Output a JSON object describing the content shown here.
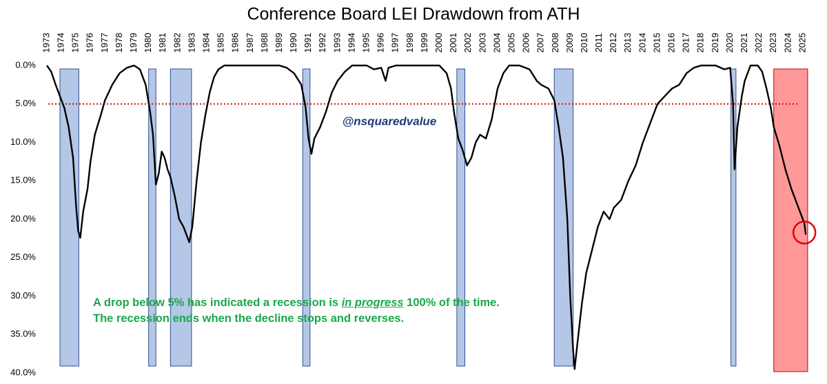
{
  "chart_data": {
    "type": "line",
    "title": "Conference Board LEI Drawdown from ATH",
    "watermark": "@nsquaredvalue",
    "annotation": {
      "line1_before": "A drop below 5% has indicated a recession is",
      "line1_emph": "in progress",
      "line1_after": "100% of the time.",
      "line2": "The recession ends when the decline stops and reverses."
    },
    "color": "#000000",
    "y_inverted": true,
    "threshold": 5,
    "threshold_color": "#e00000",
    "recession_color": "#b4c7e7",
    "recessions": [
      {
        "start": 1973.9,
        "end": 1975.2
      },
      {
        "start": 1980.0,
        "end": 1980.5
      },
      {
        "start": 1981.5,
        "end": 1982.95
      },
      {
        "start": 1990.6,
        "end": 1991.1
      },
      {
        "start": 2001.2,
        "end": 2001.75
      },
      {
        "start": 2007.9,
        "end": 2009.2
      },
      {
        "start": 2020.05,
        "end": 2020.4
      }
    ],
    "current_color": "#ff9999",
    "current": {
      "start": 2023.0,
      "end": 2025.33
    },
    "x": [
      1973.0,
      1973.3,
      1973.6,
      1973.9,
      1974.2,
      1974.5,
      1974.8,
      1975.0,
      1975.15,
      1975.3,
      1975.5,
      1975.8,
      1976.0,
      1976.3,
      1976.7,
      1977.0,
      1977.5,
      1978.0,
      1978.5,
      1979.0,
      1979.4,
      1979.8,
      1980.1,
      1980.3,
      1980.5,
      1980.7,
      1980.9,
      1981.1,
      1981.3,
      1981.5,
      1981.8,
      1982.1,
      1982.4,
      1982.7,
      1982.8,
      1983.0,
      1983.3,
      1983.6,
      1983.9,
      1984.2,
      1984.5,
      1984.8,
      1985.2,
      1986.0,
      1987.0,
      1988.0,
      1989.0,
      1989.5,
      1990.0,
      1990.5,
      1990.8,
      1991.0,
      1991.2,
      1991.4,
      1991.8,
      1992.2,
      1992.6,
      1993.0,
      1993.5,
      1994.0,
      1995.0,
      1995.5,
      1996.0,
      1996.3,
      1996.5,
      1997.0,
      1998.0,
      1999.0,
      2000.0,
      2000.5,
      2000.8,
      2001.0,
      2001.3,
      2001.6,
      2001.9,
      2002.2,
      2002.5,
      2002.8,
      2003.2,
      2003.6,
      2004.0,
      2004.4,
      2004.8,
      2005.5,
      2006.2,
      2006.7,
      2007.0,
      2007.5,
      2007.9,
      2008.2,
      2008.5,
      2008.8,
      2009.0,
      2009.2,
      2009.3,
      2009.5,
      2009.8,
      2010.1,
      2010.5,
      2010.9,
      2011.3,
      2011.7,
      2012.0,
      2012.5,
      2013.0,
      2013.5,
      2014.0,
      2014.5,
      2015.0,
      2015.5,
      2016.0,
      2016.5,
      2017.0,
      2017.5,
      2018.0,
      2019.0,
      2019.6,
      2020.0,
      2020.2,
      2020.3,
      2020.5,
      2020.8,
      2021.0,
      2021.4,
      2021.9,
      2022.2,
      2022.5,
      2022.8,
      2023.0,
      2023.4,
      2023.8,
      2024.2,
      2024.6,
      2024.9,
      2025.1,
      2025.2
    ],
    "values": [
      0,
      0.8,
      2.5,
      4,
      5.5,
      8,
      12,
      18,
      21.5,
      22.4,
      19,
      16,
      12.5,
      9,
      6.5,
      4.5,
      2.5,
      1,
      0.3,
      0,
      0.5,
      2.5,
      6,
      9,
      15.5,
      14,
      11.2,
      12,
      13.5,
      14.5,
      17,
      20,
      21,
      22.5,
      23,
      21,
      15,
      10,
      6.5,
      3.5,
      1.5,
      0.5,
      0,
      0,
      0,
      0,
      0,
      0.3,
      1,
      2.5,
      5.5,
      9.5,
      11.5,
      9.5,
      8,
      6,
      3.5,
      2,
      0.8,
      0,
      0,
      0.5,
      0.3,
      2,
      0.3,
      0,
      0,
      0,
      0,
      1,
      3,
      6,
      9.5,
      11,
      13,
      12,
      10,
      9,
      9.5,
      7,
      3,
      1,
      0,
      0,
      0.5,
      2,
      2.5,
      3,
      4.5,
      8,
      12,
      20,
      30,
      37,
      39.5,
      36,
      31,
      27,
      24,
      21,
      19,
      20,
      18.5,
      17.5,
      15,
      13,
      10,
      7.5,
      5,
      4,
      3,
      2.5,
      1,
      0.3,
      0,
      0,
      0.5,
      0.3,
      5,
      13.5,
      8,
      4,
      2,
      0,
      0,
      0.8,
      3,
      5.5,
      8,
      10.5,
      13.5,
      16,
      18,
      19.5,
      20.5,
      22
    ],
    "xlim": [
      1973,
      2025.5
    ],
    "xticks": [
      1973,
      1974,
      1975,
      1976,
      1977,
      1978,
      1979,
      1980,
      1981,
      1982,
      1983,
      1984,
      1985,
      1986,
      1987,
      1988,
      1989,
      1990,
      1991,
      1992,
      1993,
      1994,
      1995,
      1996,
      1997,
      1998,
      1999,
      2000,
      2001,
      2002,
      2003,
      2004,
      2005,
      2006,
      2007,
      2008,
      2009,
      2010,
      2011,
      2012,
      2013,
      2014,
      2015,
      2016,
      2017,
      2018,
      2019,
      2020,
      2021,
      2022,
      2023,
      2024,
      2025
    ],
    "ylim": [
      0,
      40
    ],
    "yticks": [
      {
        "value": 0,
        "label": "0.0%"
      },
      {
        "value": 5,
        "label": "5.0%"
      },
      {
        "value": 10,
        "label": "10.0%"
      },
      {
        "value": 15,
        "label": "15.0%"
      },
      {
        "value": 20,
        "label": "20.0%"
      },
      {
        "value": 25,
        "label": "25.0%"
      },
      {
        "value": 30,
        "label": "30.0%"
      },
      {
        "value": 35,
        "label": "35.0%"
      },
      {
        "value": 40,
        "label": "40.0%"
      }
    ]
  }
}
